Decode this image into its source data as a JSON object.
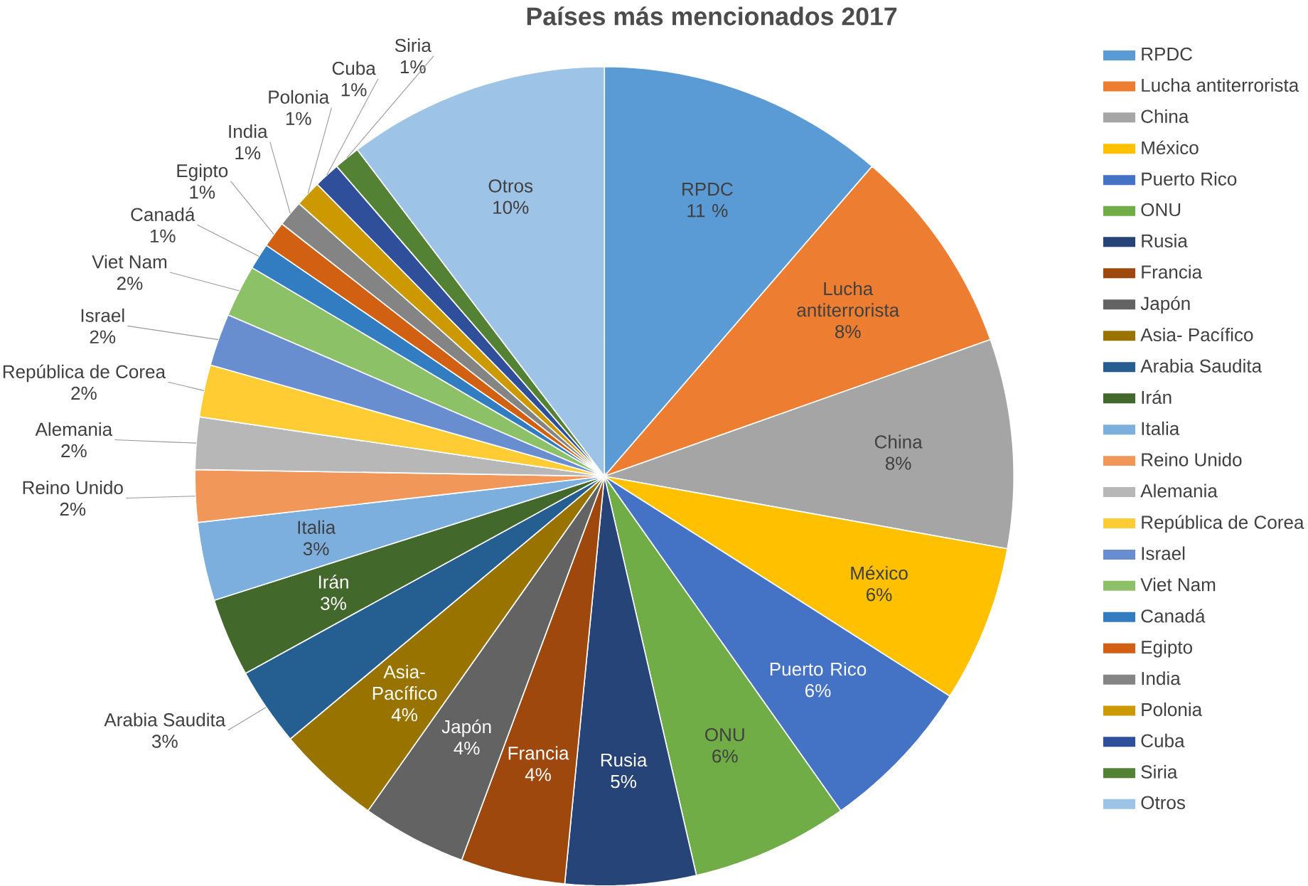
{
  "chart_data": {
    "type": "pie",
    "title": "Países más mencionados 2017",
    "categories": [
      "RPDC",
      "Lucha antiterrorista",
      "China",
      "México",
      "Puerto Rico",
      "ONU",
      "Rusia",
      "Francia",
      "Japón",
      "Asia- Pacífico",
      "Arabia Saudita",
      "Irán",
      "Italia",
      "Reino Unido",
      "Alemania",
      "República de Corea",
      "Israel",
      "Viet Nam",
      "Canadá",
      "Egipto",
      "India",
      "Polonia",
      "Cuba",
      "Siria",
      "Otros"
    ],
    "values": [
      11,
      8,
      8,
      6,
      6,
      6,
      5,
      4,
      4,
      4,
      3,
      3,
      3,
      2,
      2,
      2,
      2,
      2,
      1,
      1,
      1,
      1,
      1,
      1,
      10
    ],
    "value_labels": [
      "11 %",
      "8%",
      "8%",
      "6%",
      "6%",
      "6%",
      "5%",
      "4%",
      "4%",
      "4%",
      "3%",
      "3%",
      "3%",
      "2%",
      "2%",
      "2%",
      "2%",
      "2%",
      "1%",
      "1%",
      "1%",
      "1%",
      "1%",
      "1%",
      "10%"
    ],
    "colors": [
      "#5b9bd5",
      "#ed7d31",
      "#a5a5a5",
      "#ffc000",
      "#4472c4",
      "#70ad47",
      "#264478",
      "#9e480e",
      "#636363",
      "#997300",
      "#255e91",
      "#43682b",
      "#7cafdd",
      "#f1975a",
      "#b7b7b7",
      "#ffcd33",
      "#698ed0",
      "#8cc168",
      "#327dc2",
      "#d26012",
      "#848484",
      "#cc9a00",
      "#2f4f9a",
      "#548235",
      "#9dc3e6"
    ],
    "legend": "right"
  }
}
